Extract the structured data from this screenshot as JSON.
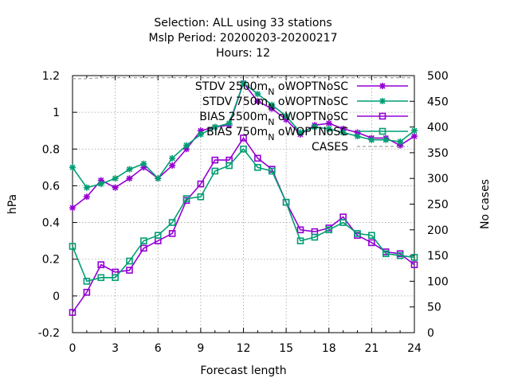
{
  "chart_data": {
    "type": "line",
    "title_lines": [
      "Selection: ALL using    33 stations",
      "Mslp   Period: 20200203-20200217",
      "Hours:  12"
    ],
    "xlabel": "Forecast length",
    "ylabel": "hPa",
    "y2label": "No cases",
    "x": [
      0,
      1,
      2,
      3,
      4,
      5,
      6,
      7,
      8,
      9,
      10,
      11,
      12,
      13,
      14,
      15,
      16,
      17,
      18,
      19,
      20,
      21,
      22,
      23,
      24
    ],
    "xlim": [
      0,
      24
    ],
    "ylim": [
      -0.2,
      1.2
    ],
    "y2lim": [
      0,
      500
    ],
    "xticks": [
      0,
      3,
      6,
      9,
      12,
      15,
      18,
      21,
      24
    ],
    "yticks": [
      "-0.2",
      "0",
      "0.2",
      "0.4",
      "0.6",
      "0.8",
      "1",
      "1.2"
    ],
    "y2ticks": [
      "0",
      "50",
      "100",
      "150",
      "200",
      "250",
      "300",
      "350",
      "400",
      "450",
      "500"
    ],
    "grid": true,
    "legend_position": "top-right",
    "series": [
      {
        "name": "STDV 2500m_N oWOPTNoSC",
        "label_main": "STDV 2500m",
        "label_sub": "N",
        "label_tail": " oWOPTNoSC",
        "color": "#9400D3",
        "marker": "star",
        "axis": "y",
        "values": [
          0.48,
          0.54,
          0.63,
          0.59,
          0.64,
          0.7,
          0.64,
          0.71,
          0.8,
          0.9,
          0.92,
          0.93,
          1.16,
          1.06,
          1.02,
          0.96,
          0.88,
          0.93,
          0.94,
          0.91,
          0.89,
          0.86,
          0.86,
          0.82,
          0.87
        ]
      },
      {
        "name": "STDV 750m_N oWOPTNoSC",
        "label_main": "STDV 750m",
        "label_sub": "N",
        "label_tail": " oWOPTNoSC",
        "color": "#009E73",
        "marker": "star",
        "axis": "y",
        "values": [
          0.7,
          0.59,
          0.61,
          0.64,
          0.69,
          0.72,
          0.64,
          0.75,
          0.82,
          0.88,
          0.92,
          0.94,
          1.16,
          1.1,
          1.04,
          0.98,
          0.89,
          0.92,
          0.91,
          0.89,
          0.87,
          0.85,
          0.85,
          0.84,
          0.9
        ]
      },
      {
        "name": "BIAS 2500m_N oWOPTNoSC",
        "label_main": "BIAS 2500m",
        "label_sub": "N",
        "label_tail": " oWOPTNoSC",
        "color": "#9400D3",
        "marker": "square",
        "axis": "y",
        "values": [
          -0.09,
          0.02,
          0.17,
          0.13,
          0.14,
          0.26,
          0.3,
          0.34,
          0.52,
          0.61,
          0.74,
          0.74,
          0.86,
          0.75,
          0.69,
          0.51,
          0.36,
          0.35,
          0.37,
          0.43,
          0.33,
          0.29,
          0.24,
          0.23,
          0.17
        ]
      },
      {
        "name": "BIAS 750m_N oWOPTNoSC",
        "label_main": "BIAS 750m",
        "label_sub": "N",
        "label_tail": " oWOPTNoSC",
        "color": "#009E73",
        "marker": "square",
        "axis": "y",
        "values": [
          0.27,
          0.08,
          0.1,
          0.1,
          0.19,
          0.3,
          0.33,
          0.4,
          0.53,
          0.54,
          0.68,
          0.71,
          0.8,
          0.7,
          0.68,
          0.51,
          0.3,
          0.32,
          0.36,
          0.4,
          0.34,
          0.33,
          0.23,
          0.22,
          0.21
        ]
      },
      {
        "name": "CASES",
        "label_main": "CASES",
        "label_sub": "",
        "label_tail": "",
        "color": "#A0A0A0",
        "marker": "none",
        "dashed": true,
        "axis": "y2",
        "values": [
          494,
          494,
          496,
          496,
          496,
          496,
          496,
          496,
          496,
          496,
          496,
          496,
          496,
          496,
          496,
          496,
          496,
          496,
          496,
          496,
          496,
          496,
          496,
          496,
          496
        ]
      }
    ]
  }
}
